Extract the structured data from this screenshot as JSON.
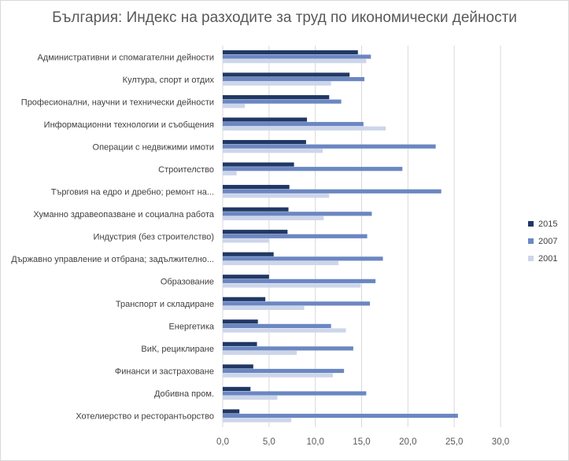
{
  "chart_data": {
    "type": "bar",
    "orientation": "horizontal",
    "title": "България: Индекс на разходите за труд по икономически дейности",
    "xlim": [
      0,
      30
    ],
    "x_ticks": [
      "0,0",
      "5,0",
      "10,0",
      "15,0",
      "20,0",
      "25,0",
      "30,0"
    ],
    "grid": true,
    "legend_position": "right",
    "categories": [
      "Административни и спомагателни дейности",
      "Култура, спорт и отдих",
      "Професионални, научни и технически дейности",
      "Информационни технологии и съобщения",
      "Операции с недвижими имоти",
      "Строителство",
      "Търговия на едро и дребно; ремонт на...",
      "Хуманно здравеопазване и социална работа",
      "Индустрия (без строителство)",
      "Държавно управление и отбрана; задължително...",
      "Образование",
      "Транспорт и складиране",
      "Енергетика",
      "ВиК, рециклиране",
      "Финанси и застраховане",
      "Добивна пром.",
      "Хотелиерство и ресторантьорство"
    ],
    "series": [
      {
        "name": "2015",
        "color": "#203864",
        "values": [
          14.6,
          13.7,
          11.5,
          9.1,
          9.0,
          7.7,
          7.2,
          7.1,
          7.0,
          5.5,
          5.0,
          4.6,
          3.8,
          3.7,
          3.3,
          3.0,
          1.8
        ]
      },
      {
        "name": "2007",
        "color": "#6b87c2",
        "values": [
          16.0,
          15.3,
          12.8,
          15.2,
          23.0,
          19.4,
          23.6,
          16.1,
          15.6,
          17.3,
          16.5,
          15.9,
          11.7,
          14.1,
          13.1,
          15.5,
          25.4
        ]
      },
      {
        "name": "2001",
        "color": "#cdd5ea",
        "values": [
          15.5,
          11.7,
          2.4,
          17.6,
          10.8,
          1.5,
          11.5,
          10.9,
          5.0,
          12.5,
          14.9,
          8.8,
          13.3,
          8.0,
          11.9,
          5.9,
          7.4
        ]
      }
    ]
  }
}
